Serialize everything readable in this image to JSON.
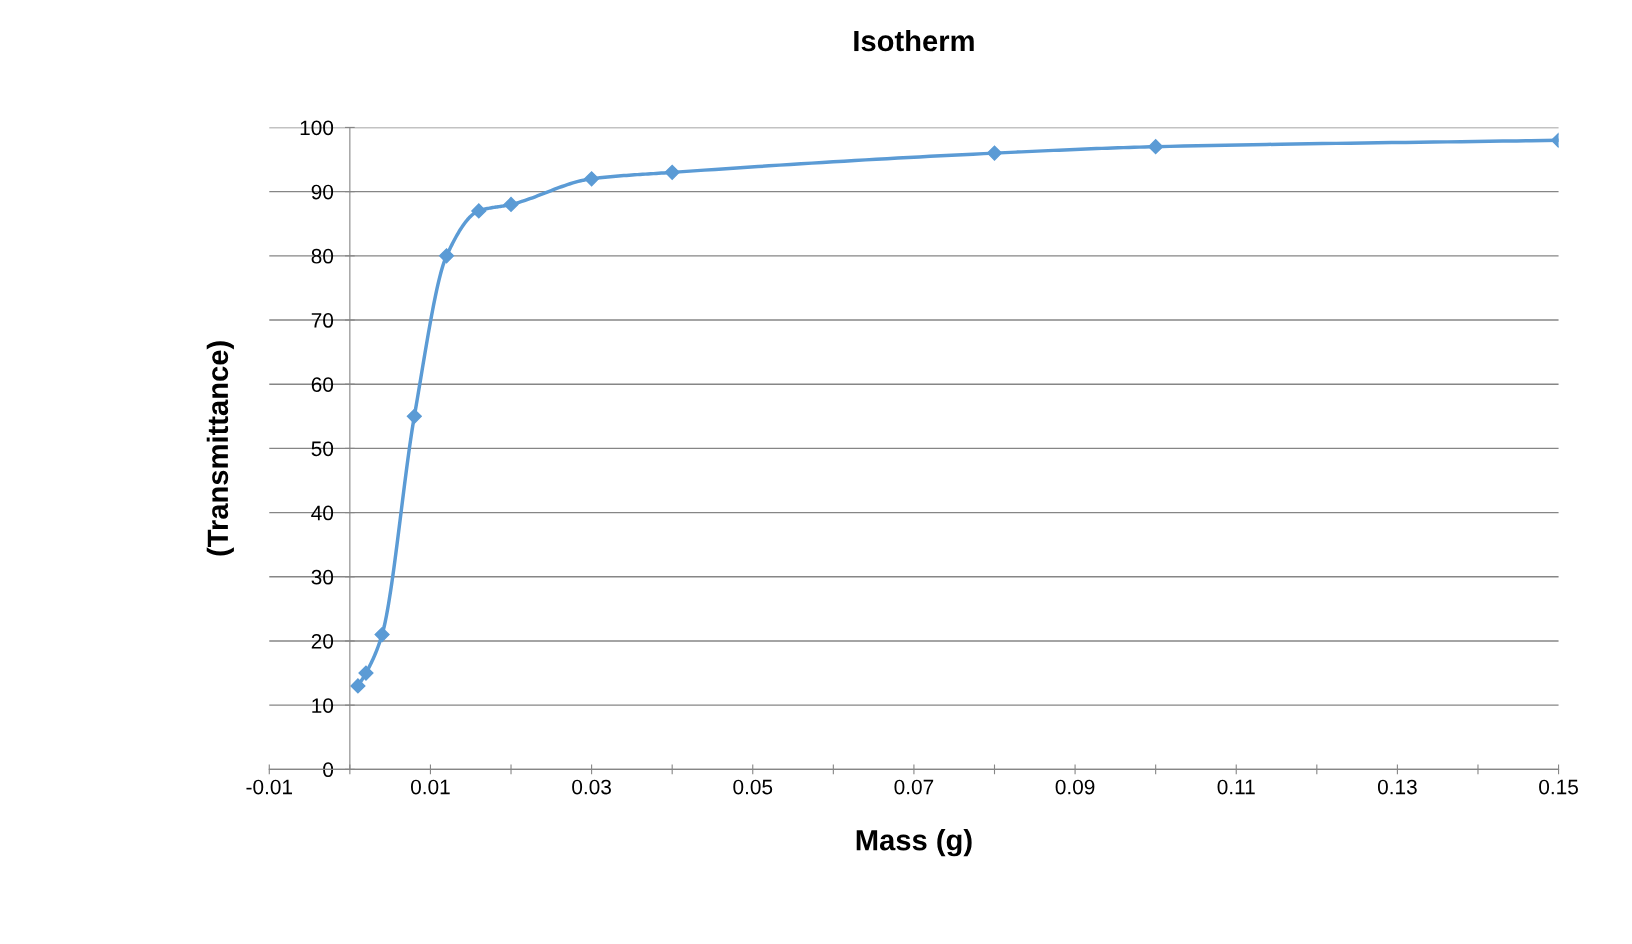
{
  "chart_data": {
    "type": "line",
    "title": "Isotherm",
    "xlabel": "Mass (g)",
    "ylabel": "(Transmittance)",
    "x": [
      0.001,
      0.002,
      0.004,
      0.008,
      0.012,
      0.016,
      0.02,
      0.03,
      0.04,
      0.08,
      0.1,
      0.15
    ],
    "series": [
      {
        "color": "#5b9bd5",
        "values": [
          13,
          15,
          21,
          55,
          80,
          87,
          88,
          92,
          93,
          96,
          97,
          98
        ]
      }
    ],
    "xlim": [
      -0.01,
      0.15
    ],
    "xticks": [
      {
        "value": -0.01,
        "label": "-0.01"
      },
      {
        "value": 0,
        "label": null
      },
      {
        "value": 0.01,
        "label": "0.01"
      },
      {
        "value": 0.02,
        "label": null
      },
      {
        "value": 0.03,
        "label": "0.03"
      },
      {
        "value": 0.04,
        "label": null
      },
      {
        "value": 0.05,
        "label": "0.05"
      },
      {
        "value": 0.06,
        "label": null
      },
      {
        "value": 0.07,
        "label": "0.07"
      },
      {
        "value": 0.08,
        "label": null
      },
      {
        "value": 0.09,
        "label": "0.09"
      },
      {
        "value": 0.1,
        "label": null
      },
      {
        "value": 0.11,
        "label": "0.11"
      },
      {
        "value": 0.12,
        "label": null
      },
      {
        "value": 0.13,
        "label": "0.13"
      },
      {
        "value": 0.14,
        "label": null
      },
      {
        "value": 0.15,
        "label": "0.15"
      }
    ],
    "ylim": [
      0,
      100
    ],
    "yticks": [
      0,
      10,
      20,
      30,
      40,
      50,
      60,
      70,
      80,
      90,
      100
    ],
    "grid": "y",
    "marker": "diamond",
    "line_style": "solid",
    "legend": false
  }
}
